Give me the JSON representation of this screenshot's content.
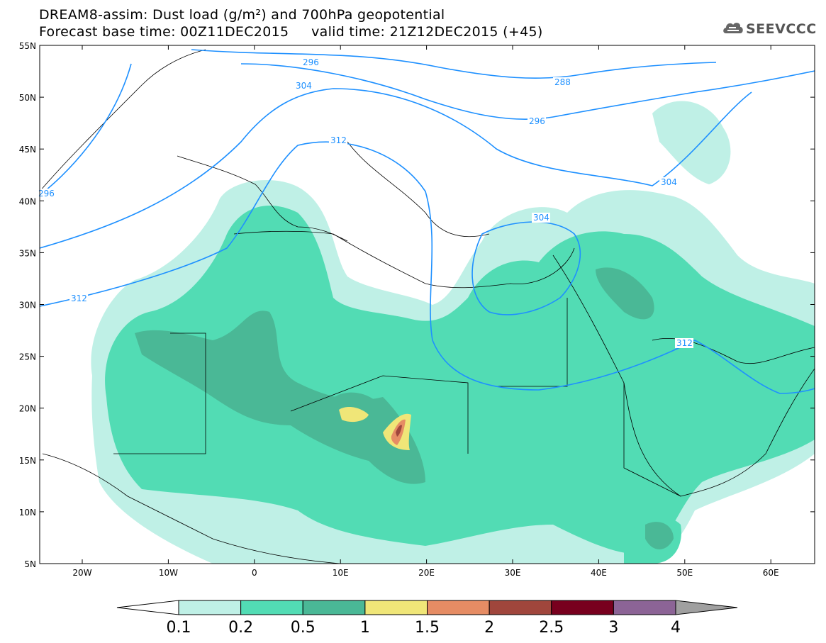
{
  "title": {
    "line1": "DREAM8-assim: Dust load (g/m²) and 700hPa geopotential",
    "line2_left": "Forecast base time: 00Z11DEC2015",
    "line2_right": "valid time: 21Z12DEC2015 (+45)"
  },
  "logo": {
    "text": "SEEVCCC",
    "icon": "cloud-icon"
  },
  "map": {
    "lat_labels": [
      "55N",
      "50N",
      "45N",
      "40N",
      "35N",
      "30N",
      "25N",
      "20N",
      "15N",
      "10N",
      "5N"
    ],
    "lon_labels": [
      "20W",
      "10W",
      "0",
      "10E",
      "20E",
      "30E",
      "40E",
      "50E",
      "60E"
    ],
    "contours": [
      {
        "label": "288",
        "color": "#1e90ff"
      },
      {
        "label": "296",
        "color": "#1e90ff"
      },
      {
        "label": "304",
        "color": "#1e90ff"
      },
      {
        "label": "312",
        "color": "#1e90ff"
      }
    ]
  },
  "colorbar": {
    "ticks": [
      "0.1",
      "0.2",
      "0.5",
      "1",
      "1.5",
      "2",
      "2.5",
      "3",
      "4"
    ],
    "colors": [
      "#ffffff",
      "#bff0e6",
      "#52dcb4",
      "#4ab896",
      "#f0e678",
      "#e68c64",
      "#a0463c",
      "#78001e",
      "#8c6496",
      "#a0a0a0"
    ]
  }
}
